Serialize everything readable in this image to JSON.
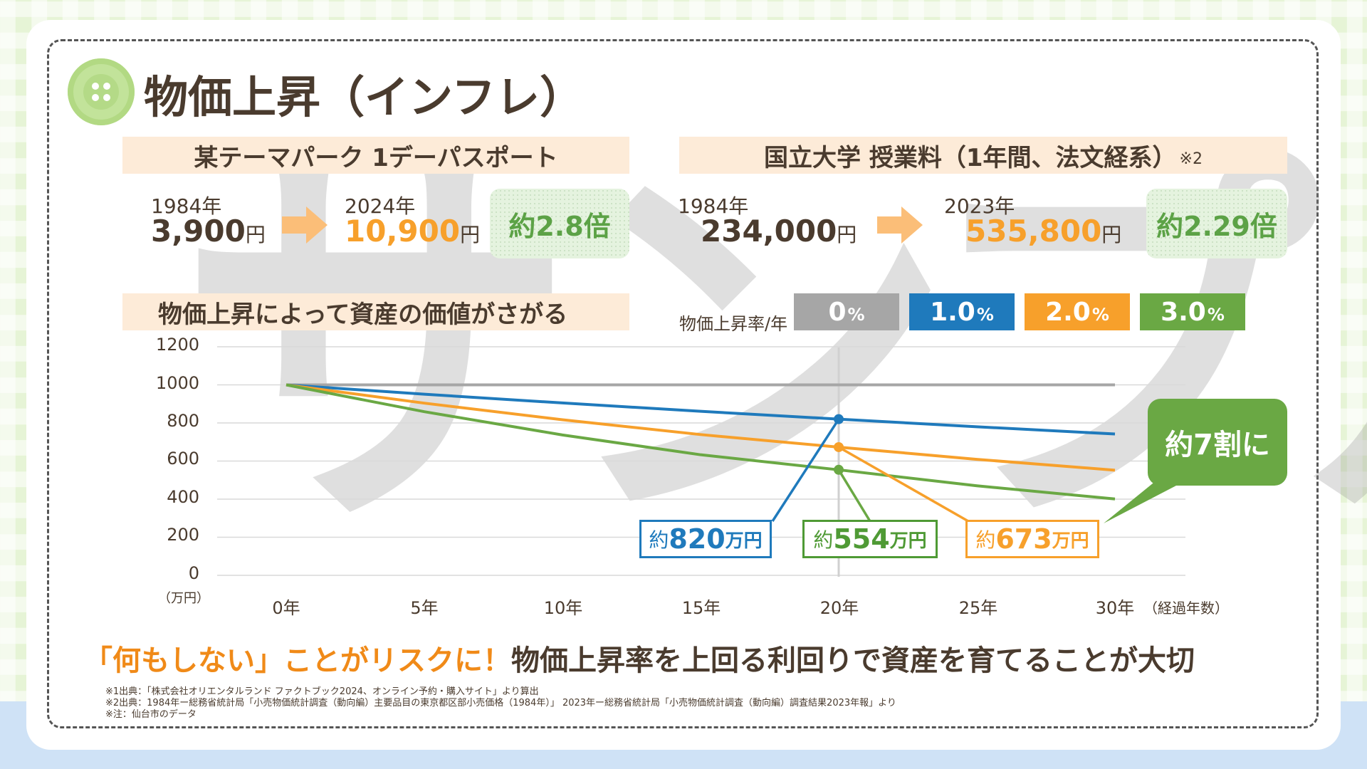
{
  "page_title": "物価上昇（インフレ）",
  "watermark": "サンプル",
  "theme_park": {
    "banner": "某テーマパーク 1デーパスポート",
    "from_year": "1984年",
    "from_price": "3,900",
    "to_year": "2024年",
    "to_price": "10,900",
    "unit": "円",
    "ratio": "約2.8倍"
  },
  "university": {
    "banner": "国立大学 授業料（1年間、法文経系）",
    "note": "※2",
    "from_year": "1984年",
    "from_price": "234,000",
    "to_year": "2023年",
    "to_price": "535,800",
    "unit": "円",
    "ratio": "約2.29倍"
  },
  "chart_banner": "物価上昇によって資産の価値がさがる",
  "rate_label": "物価上昇率/年",
  "legend": [
    {
      "num": "0",
      "pct": "%",
      "color": "#a6a6a6"
    },
    {
      "num": "1.0",
      "pct": "%",
      "color": "#1f7abc"
    },
    {
      "num": "2.0",
      "pct": "%",
      "color": "#f7a02b"
    },
    {
      "num": "3.0",
      "pct": "%",
      "color": "#6aa844"
    }
  ],
  "chart_data": {
    "type": "line",
    "x": [
      0,
      5,
      10,
      15,
      20,
      25,
      30
    ],
    "x_tick_labels": [
      "0年",
      "5年",
      "10年",
      "15年",
      "20年",
      "25年",
      "30年"
    ],
    "y_tick_labels": [
      "0",
      "200",
      "400",
      "600",
      "800",
      "1000",
      "1200"
    ],
    "ylim": [
      0,
      1200
    ],
    "xlim": [
      0,
      30
    ],
    "yunit": "（万円）",
    "xlabel": "（経過年数）",
    "grid": true,
    "highlight_x": 20,
    "series": [
      {
        "name": "0%",
        "color": "#a6a6a6",
        "values": [
          1000,
          1000,
          1000,
          1000,
          1000,
          1000,
          1000
        ]
      },
      {
        "name": "1.0%",
        "color": "#1f7abc",
        "values": [
          1000,
          951,
          905,
          861,
          820,
          780,
          742
        ]
      },
      {
        "name": "2.0%",
        "color": "#f7a02b",
        "values": [
          1000,
          904,
          817,
          739,
          673,
          609,
          552
        ]
      },
      {
        "name": "3.0%",
        "color": "#6aa844",
        "values": [
          1000,
          859,
          737,
          633,
          554,
          470,
          401
        ]
      }
    ]
  },
  "callouts": [
    {
      "prefix": "約",
      "num": "820",
      "suffix": "万円",
      "color": "#1f7abc"
    },
    {
      "prefix": "約",
      "num": "554",
      "suffix": "万円",
      "color": "#4f9a35"
    },
    {
      "prefix": "約",
      "num": "673",
      "suffix": "万円",
      "color": "#f7a02b"
    }
  ],
  "bubble": "約7割に",
  "bottom_message": {
    "highlight": "「何もしない」ことがリスクに！",
    "rest": "物価上昇率を上回る利回りで資産を育てることが大切"
  },
  "footnotes": [
    "※1出典：「株式会社オリエンタルランド ファクトブック2024、オンライン予約・購入サイト」より算出",
    "※2出典：1984年ー総務省統計局「小売物価統計調査（動向編）主要品目の東京都区部小売価格（1984年）」 2023年ー総務省統計局「小売物価統計調査（動向編）調査結果2023年報」より",
    "※注：仙台市のデータ"
  ]
}
